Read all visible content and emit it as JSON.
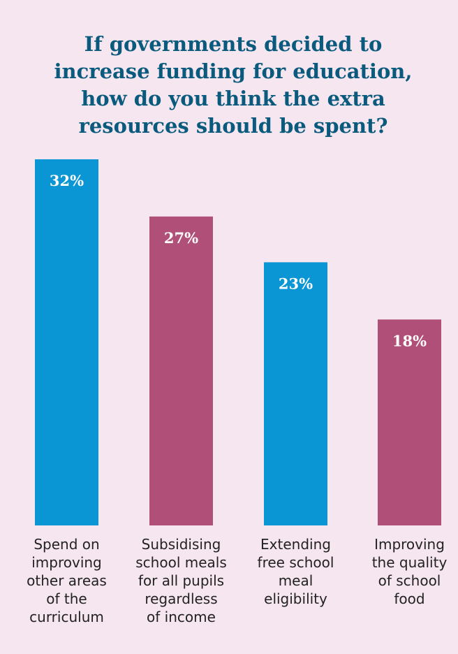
{
  "chart_data": {
    "type": "bar",
    "title_lines": [
      "If governments decided to",
      "increase funding for education,",
      "how do you think the extra",
      "resources should be spent?"
    ],
    "categories": [
      [
        "Spend on",
        "improving",
        "other areas",
        "of the",
        "curriculum"
      ],
      [
        "Subsidising",
        "school meals",
        "for all pupils",
        "regardless",
        "of income"
      ],
      [
        "Extending",
        "free school",
        "meal",
        "eligibility"
      ],
      [
        "Improving",
        "the quality",
        "of school",
        "food"
      ]
    ],
    "values": [
      32,
      27,
      23,
      18
    ],
    "data_labels": [
      "32%",
      "27%",
      "23%",
      "18%"
    ],
    "colors": [
      "#0a96d4",
      "#b05078",
      "#0a96d4",
      "#b05078"
    ],
    "ylim": [
      0,
      32
    ],
    "grid": false,
    "legend": "none"
  }
}
